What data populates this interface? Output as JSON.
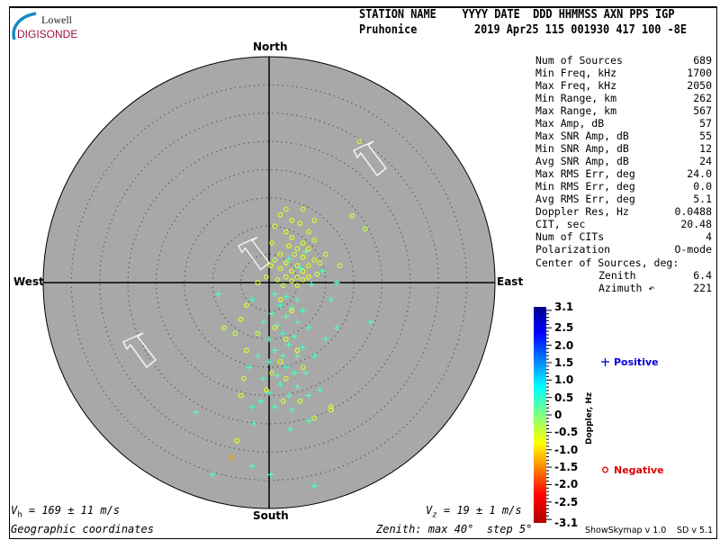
{
  "logo": {
    "line1": "Lowell",
    "line2": "DIGISONDE"
  },
  "header": {
    "labels": "STATION NAME    YYYY DATE  DDD HHMMSS AXN PPS IGP",
    "station": "Pruhonice",
    "values": "2019 Apr25 115 001930 417 100 -8E"
  },
  "stats": [
    {
      "label": "Num of Sources",
      "value": "689"
    },
    {
      "label": "Min Freq, kHz",
      "value": "1700"
    },
    {
      "label": "Max Freq, kHz",
      "value": "2050"
    },
    {
      "label": "Min Range, km",
      "value": "262"
    },
    {
      "label": "Max Range, km",
      "value": "567"
    },
    {
      "label": "Max Amp, dB",
      "value": "57"
    },
    {
      "label": "Max SNR Amp, dB",
      "value": "55"
    },
    {
      "label": "Min SNR Amp, dB",
      "value": "12"
    },
    {
      "label": "Avg SNR Amp, dB",
      "value": "24"
    },
    {
      "label": "Max RMS Err, deg",
      "value": "24.0"
    },
    {
      "label": "Min RMS Err, deg",
      "value": "0.0"
    },
    {
      "label": "Avg RMS Err, deg",
      "value": "5.1"
    },
    {
      "label": "Doppler Res, Hz",
      "value": "0.0488"
    },
    {
      "label": "CIT, sec",
      "value": "20.48"
    },
    {
      "label": "Num of CITs",
      "value": "4"
    },
    {
      "label": "Polarization",
      "value": "O-mode"
    }
  ],
  "center": {
    "title": "Center of Sources, deg:",
    "zenith_label": "Zenith",
    "zenith_value": "6.4",
    "azimuth_label": "Azimuth ↶",
    "azimuth_value": "221"
  },
  "directions": {
    "north": "North",
    "south": "South",
    "east": "East",
    "west": "West"
  },
  "footer": {
    "vh": "V",
    "vh_sub": "h",
    "vh_rest": " = 169 ± 11 m/s",
    "vz": "V",
    "vz_sub": "z",
    "vz_rest": " = 19 ± 1 m/s",
    "coords": "Geographic coordinates",
    "zenith": "Zenith: max 40°  step 5°",
    "version1": "ShowSkymap v 1.0",
    "version2": "SD v 5.1"
  },
  "legend": {
    "positive": "Positive",
    "negative": "Negative",
    "positive_color": "#0000dd",
    "negative_color": "#dd0000",
    "positive_icon": "plus-marker",
    "negative_icon": "circle-marker"
  },
  "colors": {
    "plot_bg": "#a8a8a8",
    "logo_red": "#a0104a",
    "logo_blue": "#1a8ac0"
  },
  "chart_data": {
    "type": "scatter",
    "projection": "polar skymap, zenith angle radial, azimuth from North clockwise",
    "zenith_max_deg": 40,
    "zenith_step_deg": 5,
    "colorbar": {
      "label": "Doppler, Hz",
      "range": [
        -3.1,
        3.1
      ],
      "ticks": [
        "3.1",
        "2.5",
        "2.0",
        "1.5",
        "1.0",
        "0.5",
        "0",
        "-0.5",
        "-1.0",
        "-1.5",
        "-2.0",
        "-2.5",
        "-3.1"
      ]
    },
    "point_fields": [
      "east_deg",
      "north_deg",
      "doppler_hz"
    ],
    "points": [
      [
        2,
        12,
        -0.5
      ],
      [
        4,
        11,
        -0.6
      ],
      [
        5.5,
        10.5,
        -0.5
      ],
      [
        3,
        13,
        -0.4
      ],
      [
        7,
        9,
        -0.5
      ],
      [
        4,
        8,
        -0.6
      ],
      [
        6,
        7,
        -0.5
      ],
      [
        8,
        7.5,
        -0.4
      ],
      [
        3.5,
        6.5,
        -0.7
      ],
      [
        5,
        6,
        -0.5
      ],
      [
        7,
        6,
        -0.6
      ],
      [
        2,
        5,
        -0.5
      ],
      [
        4.5,
        5,
        -0.4
      ],
      [
        6,
        4.5,
        -0.6
      ],
      [
        8,
        4,
        -0.5
      ],
      [
        1,
        4,
        -0.3
      ],
      [
        3,
        3.5,
        -0.6
      ],
      [
        5,
        3,
        -0.5
      ],
      [
        7,
        3,
        -0.5
      ],
      [
        9,
        3.5,
        -0.4
      ],
      [
        2,
        2.5,
        -0.5
      ],
      [
        4,
        2,
        -0.6
      ],
      [
        6,
        2,
        -0.7
      ],
      [
        3,
        1,
        -0.5
      ],
      [
        5,
        1,
        -0.5
      ],
      [
        7,
        1,
        -0.6
      ],
      [
        8.5,
        1.5,
        -0.4
      ],
      [
        1.5,
        0.5,
        -0.5
      ],
      [
        4,
        0.3,
        -0.6
      ],
      [
        6,
        0.5,
        -0.5
      ],
      [
        2.5,
        -0.5,
        -0.4
      ],
      [
        5,
        -0.5,
        -0.5
      ],
      [
        3.5,
        4.2,
        0.3
      ],
      [
        5.5,
        2.5,
        0.4
      ],
      [
        6.5,
        5.5,
        0.2
      ],
      [
        7.5,
        -0.3,
        0.3
      ],
      [
        9.5,
        2,
        0.3
      ],
      [
        12,
        0,
        0.4
      ],
      [
        11,
        -3,
        0.3
      ],
      [
        10,
        5,
        -0.5
      ],
      [
        12.5,
        3,
        -0.4
      ],
      [
        8,
        11,
        -0.5
      ],
      [
        6,
        13,
        -0.4
      ],
      [
        1,
        10,
        -0.5
      ],
      [
        3,
        9,
        -0.6
      ],
      [
        0.5,
        7,
        -0.5
      ],
      [
        0.3,
        3,
        -0.6
      ],
      [
        -0.5,
        1,
        -0.5
      ],
      [
        -2,
        0,
        -0.5
      ],
      [
        -4,
        -4,
        -0.6
      ],
      [
        -5,
        -6.5,
        -0.5
      ],
      [
        -6,
        -9,
        -0.4
      ],
      [
        1,
        -2,
        0.3
      ],
      [
        3,
        -2.5,
        0.4
      ],
      [
        5,
        -3,
        0.3
      ],
      [
        2,
        -4,
        0.5
      ],
      [
        4,
        -4.5,
        0.3
      ],
      [
        6,
        -5,
        0.4
      ],
      [
        0.5,
        -5.5,
        0.3
      ],
      [
        3,
        -6,
        0.2
      ],
      [
        5,
        -7,
        0.4
      ],
      [
        1.5,
        -7.5,
        0.3
      ],
      [
        7,
        -8,
        0.3
      ],
      [
        2.5,
        -9,
        0.5
      ],
      [
        4.5,
        -9.5,
        0.3
      ],
      [
        0,
        -10,
        0.4
      ],
      [
        3.5,
        -11,
        0.3
      ],
      [
        6,
        -11.5,
        0.4
      ],
      [
        1,
        -12,
        0.3
      ],
      [
        2.5,
        -13,
        0.3
      ],
      [
        5,
        -13,
        0.2
      ],
      [
        8,
        -13,
        0.4
      ],
      [
        0,
        -14,
        0.3
      ],
      [
        3,
        -15,
        0.5
      ],
      [
        4.5,
        -16,
        0.3
      ],
      [
        1.5,
        -16.5,
        0.3
      ],
      [
        6.5,
        -16,
        0.3
      ],
      [
        -1,
        -17,
        0.4
      ],
      [
        2,
        -18,
        0.3
      ],
      [
        5,
        -18.5,
        0.3
      ],
      [
        0,
        -19.5,
        0.4
      ],
      [
        3.5,
        -20,
        0.3
      ],
      [
        -1.5,
        -21,
        0.3
      ],
      [
        1,
        -22,
        0.3
      ],
      [
        4,
        -22.5,
        0.4
      ],
      [
        7,
        -20,
        0.3
      ],
      [
        9,
        -19,
        0.3
      ],
      [
        -2,
        -13,
        0.3
      ],
      [
        -3.5,
        -15,
        0.4
      ],
      [
        10,
        -10,
        0.3
      ],
      [
        12,
        -8,
        0.3
      ],
      [
        2,
        -3,
        -0.5
      ],
      [
        4,
        -5,
        -0.6
      ],
      [
        1,
        -8,
        -0.5
      ],
      [
        3,
        -10,
        -0.5
      ],
      [
        5,
        -12,
        -0.6
      ],
      [
        2,
        -14,
        -0.5
      ],
      [
        0.5,
        -16,
        -0.4
      ],
      [
        3,
        -17,
        -0.5
      ],
      [
        6,
        -15,
        -0.5
      ],
      [
        -0.5,
        -19,
        -0.6
      ],
      [
        2.5,
        -21,
        -0.5
      ],
      [
        5.5,
        -21,
        -0.5
      ],
      [
        8,
        -24,
        -0.4
      ],
      [
        -4,
        -12,
        -0.5
      ],
      [
        -5,
        -20,
        -0.6
      ],
      [
        11,
        -22,
        -0.5
      ],
      [
        -2,
        -9,
        -0.4
      ],
      [
        -1,
        -7,
        0.3
      ],
      [
        -3,
        -3,
        0.4
      ],
      [
        16,
        25,
        -0.5
      ],
      [
        14.7,
        11.8,
        -0.5
      ],
      [
        17,
        9.5,
        -0.4
      ],
      [
        -9,
        -2,
        0.3
      ],
      [
        -13,
        -23,
        0.3
      ],
      [
        -5.7,
        -28,
        -0.6
      ],
      [
        -6.7,
        -31,
        -1.3
      ],
      [
        -10,
        -34,
        0.3
      ],
      [
        0.3,
        -34,
        0.3
      ],
      [
        8,
        -36,
        0.4
      ],
      [
        -3,
        -32.5,
        0.4
      ],
      [
        18,
        -7,
        0.3
      ],
      [
        11,
        -22.5,
        -0.5
      ],
      [
        -2.7,
        -25,
        0.3
      ],
      [
        3.8,
        -26,
        0.3
      ],
      [
        7,
        -24.5,
        0.3
      ],
      [
        -3,
        -22,
        0.4
      ],
      [
        -8,
        -8,
        -0.5
      ],
      [
        -4.5,
        -17,
        -0.5
      ]
    ]
  }
}
